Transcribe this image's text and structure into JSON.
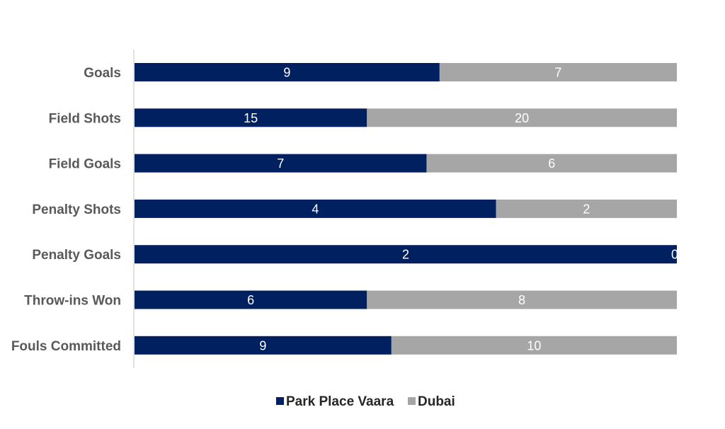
{
  "chart_data": {
    "type": "bar",
    "orientation": "horizontal",
    "stacked": "100%",
    "categories": [
      "Goals",
      "Field Shots",
      "Field Goals",
      "Penalty Shots",
      "Penalty Goals",
      "Throw-ins Won",
      "Fouls Committed"
    ],
    "series": [
      {
        "name": "Park Place Vaara",
        "values": [
          9,
          15,
          7,
          4,
          2,
          6,
          9
        ],
        "color": "#002060"
      },
      {
        "name": "Dubai",
        "values": [
          7,
          20,
          6,
          2,
          0,
          8,
          10
        ],
        "color": "#A6A6A6"
      }
    ],
    "data_labels": true,
    "legend_position": "bottom",
    "grid": false
  }
}
